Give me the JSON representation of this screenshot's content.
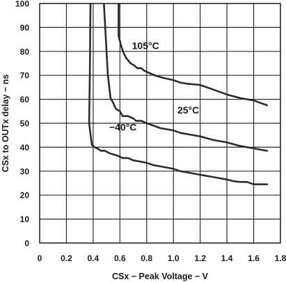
{
  "chart_data": {
    "type": "line",
    "title": "",
    "xlabel": "CSx − Peak Voltage − V",
    "ylabel": "CSx to OUTx delay − ns",
    "xlim": [
      0,
      1.8
    ],
    "ylim": [
      0,
      100
    ],
    "x_ticks": [
      0,
      0.2,
      0.4,
      0.6,
      0.8,
      1.0,
      1.2,
      1.4,
      1.6,
      1.8
    ],
    "x_tick_labels": [
      "0",
      "0.2",
      "0.4",
      "0.6",
      "0.8",
      "1.0",
      "1.2",
      "1.4",
      "1.6",
      "1.8"
    ],
    "y_ticks": [
      0,
      10,
      20,
      30,
      40,
      50,
      60,
      70,
      80,
      90,
      100
    ],
    "y_tick_labels": [
      "0",
      "10",
      "20",
      "30",
      "40",
      "50",
      "60",
      "70",
      "80",
      "90",
      "100"
    ],
    "grid": true,
    "series": [
      {
        "name": "105°C",
        "label_anchor": [
          0.69,
          81
        ],
        "points": [
          [
            0.59,
            100
          ],
          [
            0.59,
            86.5
          ],
          [
            0.61,
            82
          ],
          [
            0.63,
            79
          ],
          [
            0.65,
            77
          ],
          [
            0.68,
            75
          ],
          [
            0.71,
            74
          ],
          [
            0.73,
            73
          ],
          [
            0.76,
            73
          ],
          [
            0.78,
            72
          ],
          [
            0.82,
            71
          ],
          [
            0.86,
            70
          ],
          [
            0.92,
            69
          ],
          [
            1.0,
            68
          ],
          [
            1.05,
            67
          ],
          [
            1.1,
            66.5
          ],
          [
            1.2,
            66
          ],
          [
            1.3,
            64
          ],
          [
            1.4,
            62
          ],
          [
            1.5,
            60.5
          ],
          [
            1.6,
            59.5
          ],
          [
            1.65,
            58.5
          ],
          [
            1.7,
            57.5
          ]
        ]
      },
      {
        "name": "25°C",
        "label_anchor": [
          1.03,
          54
        ],
        "points": [
          [
            0.48,
            100
          ],
          [
            0.49,
            90
          ],
          [
            0.5,
            80
          ],
          [
            0.51,
            70
          ],
          [
            0.53,
            60.5
          ],
          [
            0.55,
            58.5
          ],
          [
            0.57,
            56
          ],
          [
            0.6,
            55
          ],
          [
            0.62,
            53
          ],
          [
            0.66,
            53
          ],
          [
            0.7,
            52
          ],
          [
            0.72,
            51
          ],
          [
            0.76,
            51
          ],
          [
            0.8,
            50
          ],
          [
            0.85,
            49
          ],
          [
            0.9,
            48
          ],
          [
            0.95,
            47.5
          ],
          [
            1.0,
            47
          ],
          [
            1.05,
            46
          ],
          [
            1.1,
            45.5
          ],
          [
            1.2,
            44.5
          ],
          [
            1.3,
            43
          ],
          [
            1.4,
            42
          ],
          [
            1.5,
            40.5
          ],
          [
            1.6,
            39.5
          ],
          [
            1.7,
            38.5
          ]
        ]
      },
      {
        "name": "−40°C",
        "label_anchor": [
          0.52,
          47
        ],
        "points": [
          [
            0.38,
            100
          ],
          [
            0.375,
            70
          ],
          [
            0.37,
            50
          ],
          [
            0.39,
            41
          ],
          [
            0.41,
            40
          ],
          [
            0.43,
            39.5
          ],
          [
            0.46,
            38.5
          ],
          [
            0.49,
            38.5
          ],
          [
            0.52,
            37.5
          ],
          [
            0.55,
            37
          ],
          [
            0.58,
            36.5
          ],
          [
            0.62,
            35.5
          ],
          [
            0.66,
            35.5
          ],
          [
            0.7,
            34.5
          ],
          [
            0.75,
            34
          ],
          [
            0.8,
            33.5
          ],
          [
            0.85,
            32.5
          ],
          [
            0.9,
            32
          ],
          [
            1.0,
            31
          ],
          [
            1.05,
            30
          ],
          [
            1.1,
            29.5
          ],
          [
            1.2,
            28.5
          ],
          [
            1.3,
            27.5
          ],
          [
            1.4,
            26.5
          ],
          [
            1.45,
            25.8
          ],
          [
            1.5,
            25.5
          ],
          [
            1.55,
            25.5
          ],
          [
            1.6,
            24.5
          ],
          [
            1.7,
            24.5
          ]
        ]
      }
    ]
  }
}
